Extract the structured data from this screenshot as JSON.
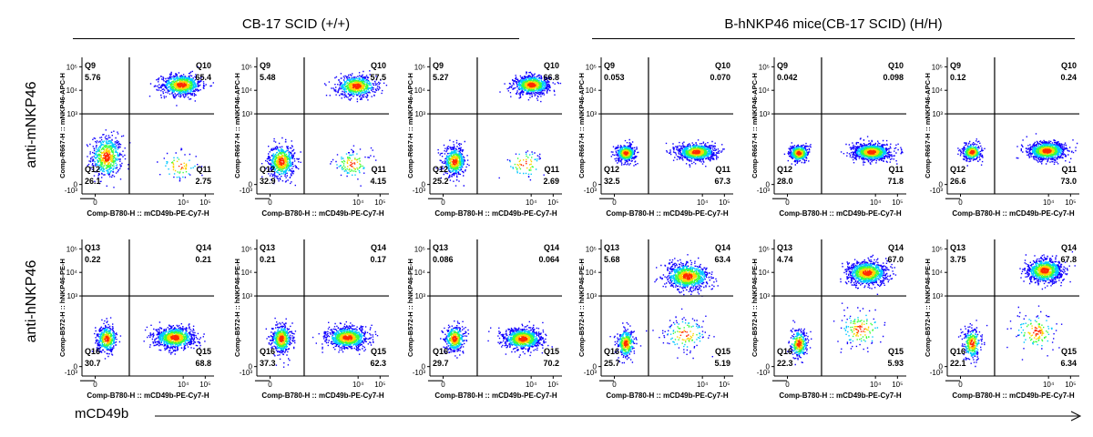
{
  "groups": [
    {
      "title": "CB-17 SCID (+/+)"
    },
    {
      "title": "B-hNKP46 mice(CB-17 SCID) (H/H)"
    }
  ],
  "row_labels": [
    "anti-mNKP46",
    "anti-hNKP46"
  ],
  "bottom_axis_label": "mCD49b",
  "x_ticks": [
    "-10³",
    "0",
    "10⁴",
    "10⁵"
  ],
  "y_ticks": [
    "-10³",
    "0",
    "10³",
    "10⁴",
    "10⁵"
  ],
  "colors": {
    "high": "#ff2a00",
    "mid_high": "#ffd400",
    "mid": "#3cff3c",
    "mid_low": "#00c8ff",
    "low": "#1000ff"
  },
  "chart_data": [
    {
      "type": "scatter",
      "subtype": "flow-cytometry-density",
      "ylabel": "Comp-R667-H :: mNKP46-APC-H",
      "xlabel": "Comp-B780-H :: mCD49b-PE-Cy7-H",
      "quadrants": [
        {
          "name": "Q9",
          "value": "5.76"
        },
        {
          "name": "Q10",
          "value": "65.4"
        },
        {
          "name": "Q11",
          "value": "2.75"
        },
        {
          "name": "Q12",
          "value": "26.1"
        }
      ],
      "populations": [
        {
          "x": 0.5,
          "y": 1.2,
          "sx": 0.7,
          "sy": 0.9,
          "weight": 0.4
        },
        {
          "x": 3.9,
          "y": 4.25,
          "sx": 0.9,
          "sy": 0.45,
          "weight": 0.55
        },
        {
          "x": 3.8,
          "y": 0.8,
          "sx": 0.9,
          "sy": 0.6,
          "weight": 0.05
        }
      ]
    },
    {
      "type": "scatter",
      "subtype": "flow-cytometry-density",
      "ylabel": "Comp-R667-H :: mNKP46-APC-H",
      "xlabel": "Comp-B780-H :: mCD49b-PE-Cy7-H",
      "quadrants": [
        {
          "name": "Q9",
          "value": "5.48"
        },
        {
          "name": "Q10",
          "value": "57.5"
        },
        {
          "name": "Q11",
          "value": "4.15"
        },
        {
          "name": "Q12",
          "value": "32.9"
        }
      ],
      "populations": [
        {
          "x": 0.5,
          "y": 1.0,
          "sx": 0.6,
          "sy": 0.7,
          "weight": 0.42
        },
        {
          "x": 3.9,
          "y": 4.2,
          "sx": 0.9,
          "sy": 0.45,
          "weight": 0.5
        },
        {
          "x": 3.7,
          "y": 0.9,
          "sx": 0.9,
          "sy": 0.6,
          "weight": 0.08
        }
      ]
    },
    {
      "type": "scatter",
      "subtype": "flow-cytometry-density",
      "ylabel": "Comp-R667-H :: mNKP46-APC-H",
      "xlabel": "Comp-B780-H :: mCD49b-PE-Cy7-H",
      "quadrants": [
        {
          "name": "Q9",
          "value": "5.27"
        },
        {
          "name": "Q10",
          "value": "66.8"
        },
        {
          "name": "Q11",
          "value": "2.69"
        },
        {
          "name": "Q12",
          "value": "25.2"
        }
      ],
      "populations": [
        {
          "x": 0.5,
          "y": 1.0,
          "sx": 0.5,
          "sy": 0.6,
          "weight": 0.35
        },
        {
          "x": 4.0,
          "y": 4.25,
          "sx": 0.8,
          "sy": 0.4,
          "weight": 0.6
        },
        {
          "x": 3.7,
          "y": 0.9,
          "sx": 0.9,
          "sy": 0.6,
          "weight": 0.05
        }
      ]
    },
    {
      "type": "scatter",
      "subtype": "flow-cytometry-density",
      "ylabel": "Comp-R667-H :: mNKP46-APC-H",
      "xlabel": "Comp-B780-H :: mCD49b-PE-Cy7-H",
      "quadrants": [
        {
          "name": "Q9",
          "value": "0.053"
        },
        {
          "name": "Q10",
          "value": "0.070"
        },
        {
          "name": "Q11",
          "value": "67.3"
        },
        {
          "name": "Q12",
          "value": "32.5"
        }
      ],
      "populations": [
        {
          "x": 0.5,
          "y": 1.35,
          "sx": 0.45,
          "sy": 0.35,
          "weight": 0.35
        },
        {
          "x": 3.7,
          "y": 1.4,
          "sx": 0.85,
          "sy": 0.35,
          "weight": 0.65
        }
      ]
    },
    {
      "type": "scatter",
      "subtype": "flow-cytometry-density",
      "ylabel": "Comp-R667-H :: mNKP46-APC-H",
      "xlabel": "Comp-B780-H :: mCD49b-PE-Cy7-H",
      "quadrants": [
        {
          "name": "Q9",
          "value": "0.042"
        },
        {
          "name": "Q10",
          "value": "0.098"
        },
        {
          "name": "Q11",
          "value": "71.8"
        },
        {
          "name": "Q12",
          "value": "28.0"
        }
      ],
      "populations": [
        {
          "x": 0.5,
          "y": 1.35,
          "sx": 0.45,
          "sy": 0.35,
          "weight": 0.3
        },
        {
          "x": 3.8,
          "y": 1.4,
          "sx": 0.85,
          "sy": 0.35,
          "weight": 0.7
        }
      ]
    },
    {
      "type": "scatter",
      "subtype": "flow-cytometry-density",
      "ylabel": "Comp-R667-H :: mNKP46-APC-H",
      "xlabel": "Comp-B780-H :: mCD49b-PE-Cy7-H",
      "quadrants": [
        {
          "name": "Q9",
          "value": "0.12"
        },
        {
          "name": "Q10",
          "value": "0.24"
        },
        {
          "name": "Q11",
          "value": "73.0"
        },
        {
          "name": "Q12",
          "value": "26.6"
        }
      ],
      "populations": [
        {
          "x": 0.5,
          "y": 1.4,
          "sx": 0.45,
          "sy": 0.35,
          "weight": 0.28
        },
        {
          "x": 3.9,
          "y": 1.45,
          "sx": 0.85,
          "sy": 0.38,
          "weight": 0.72
        }
      ]
    },
    {
      "type": "scatter",
      "subtype": "flow-cytometry-density",
      "ylabel": "Comp-B572-H :: hNKP46-PE-H",
      "xlabel": "Comp-B780-H :: mCD49b-PE-Cy7-H",
      "quadrants": [
        {
          "name": "Q13",
          "value": "0.22"
        },
        {
          "name": "Q14",
          "value": "0.21"
        },
        {
          "name": "Q15",
          "value": "68.8"
        },
        {
          "name": "Q16",
          "value": "30.7"
        }
      ],
      "populations": [
        {
          "x": 0.5,
          "y": 1.2,
          "sx": 0.45,
          "sy": 0.55,
          "weight": 0.32
        },
        {
          "x": 3.6,
          "y": 1.25,
          "sx": 0.9,
          "sy": 0.45,
          "weight": 0.68
        }
      ]
    },
    {
      "type": "scatter",
      "subtype": "flow-cytometry-density",
      "ylabel": "Comp-B572-H :: hNKP46-PE-H",
      "xlabel": "Comp-B780-H :: mCD49b-PE-Cy7-H",
      "quadrants": [
        {
          "name": "Q13",
          "value": "0.21"
        },
        {
          "name": "Q14",
          "value": "0.17"
        },
        {
          "name": "Q15",
          "value": "62.3"
        },
        {
          "name": "Q16",
          "value": "37.3"
        }
      ],
      "populations": [
        {
          "x": 0.5,
          "y": 1.2,
          "sx": 0.45,
          "sy": 0.6,
          "weight": 0.37
        },
        {
          "x": 3.5,
          "y": 1.25,
          "sx": 0.9,
          "sy": 0.45,
          "weight": 0.63
        }
      ]
    },
    {
      "type": "scatter",
      "subtype": "flow-cytometry-density",
      "ylabel": "Comp-B572-H :: hNKP46-PE-H",
      "xlabel": "Comp-B780-H :: mCD49b-PE-Cy7-H",
      "quadrants": [
        {
          "name": "Q13",
          "value": "0.086"
        },
        {
          "name": "Q14",
          "value": "0.064"
        },
        {
          "name": "Q15",
          "value": "70.2"
        },
        {
          "name": "Q16",
          "value": "29.7"
        }
      ],
      "populations": [
        {
          "x": 0.5,
          "y": 1.2,
          "sx": 0.45,
          "sy": 0.55,
          "weight": 0.3
        },
        {
          "x": 3.6,
          "y": 1.2,
          "sx": 0.85,
          "sy": 0.45,
          "weight": 0.7
        }
      ]
    },
    {
      "type": "scatter",
      "subtype": "flow-cytometry-density",
      "ylabel": "Comp-B572-H :: hNKP46-PE-H",
      "xlabel": "Comp-B780-H :: mCD49b-PE-Cy7-H",
      "quadrants": [
        {
          "name": "Q13",
          "value": "5.68"
        },
        {
          "name": "Q14",
          "value": "63.4"
        },
        {
          "name": "Q15",
          "value": "5.19"
        },
        {
          "name": "Q16",
          "value": "25.7"
        }
      ],
      "populations": [
        {
          "x": 0.5,
          "y": 1.0,
          "sx": 0.4,
          "sy": 0.6,
          "weight": 0.26
        },
        {
          "x": 3.3,
          "y": 3.85,
          "sx": 1.0,
          "sy": 0.55,
          "weight": 0.64
        },
        {
          "x": 3.2,
          "y": 1.4,
          "sx": 1.0,
          "sy": 0.7,
          "weight": 0.1
        }
      ]
    },
    {
      "type": "scatter",
      "subtype": "flow-cytometry-density",
      "ylabel": "Comp-B572-H :: hNKP46-PE-H",
      "xlabel": "Comp-B780-H :: mCD49b-PE-Cy7-H",
      "quadrants": [
        {
          "name": "Q13",
          "value": "4.74"
        },
        {
          "name": "Q14",
          "value": "67.0"
        },
        {
          "name": "Q15",
          "value": "5.93"
        },
        {
          "name": "Q16",
          "value": "22.3"
        }
      ],
      "populations": [
        {
          "x": 0.5,
          "y": 1.0,
          "sx": 0.4,
          "sy": 0.6,
          "weight": 0.22
        },
        {
          "x": 3.6,
          "y": 4.0,
          "sx": 0.9,
          "sy": 0.5,
          "weight": 0.68
        },
        {
          "x": 3.3,
          "y": 1.6,
          "sx": 1.0,
          "sy": 0.8,
          "weight": 0.1
        }
      ]
    },
    {
      "type": "scatter",
      "subtype": "flow-cytometry-density",
      "ylabel": "Comp-B572-H :: hNKP46-PE-H",
      "xlabel": "Comp-B780-H :: mCD49b-PE-Cy7-H",
      "quadrants": [
        {
          "name": "Q13",
          "value": "3.75"
        },
        {
          "name": "Q14",
          "value": "67.8"
        },
        {
          "name": "Q15",
          "value": "6.34"
        },
        {
          "name": "Q16",
          "value": "22.1"
        }
      ],
      "populations": [
        {
          "x": 0.5,
          "y": 1.0,
          "sx": 0.4,
          "sy": 0.65,
          "weight": 0.22
        },
        {
          "x": 3.8,
          "y": 4.1,
          "sx": 0.8,
          "sy": 0.5,
          "weight": 0.68
        },
        {
          "x": 3.4,
          "y": 1.5,
          "sx": 1.0,
          "sy": 0.8,
          "weight": 0.1
        }
      ]
    }
  ]
}
